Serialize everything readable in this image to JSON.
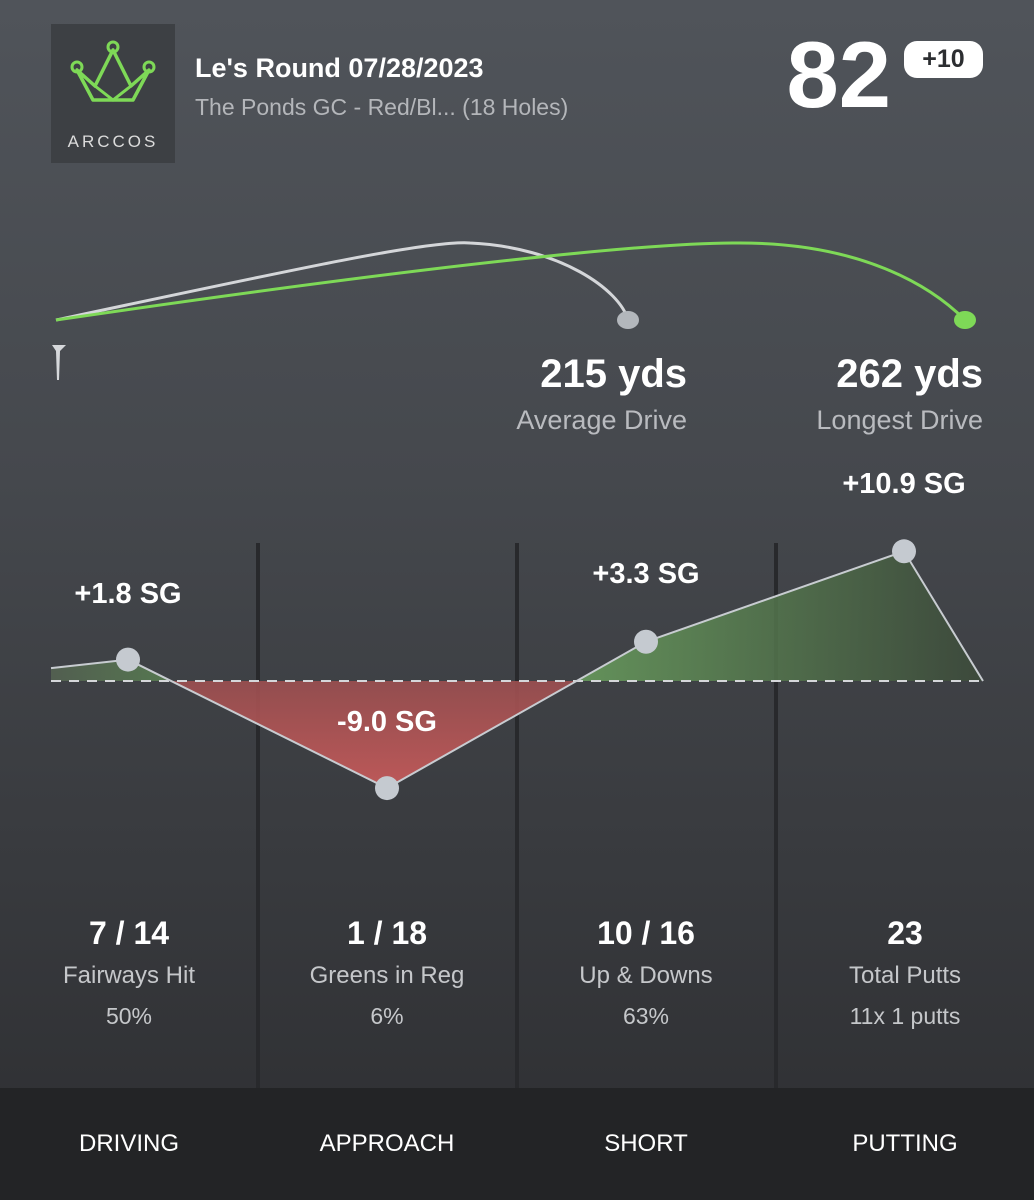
{
  "logo": {
    "text": "ARCCOS",
    "accent": "#7ed957"
  },
  "header": {
    "round_title": "Le's Round 07/28/2023",
    "course": "The Ponds GC - Red/Bl... (18 Holes)",
    "score": "82",
    "over_par": "+10"
  },
  "drives": {
    "average": {
      "value": "215 yds",
      "label": "Average Drive",
      "yards": 215
    },
    "longest": {
      "value": "262 yds",
      "label": "Longest Drive",
      "yards": 262
    }
  },
  "chart_data": {
    "type": "area",
    "categories": [
      "DRIVING",
      "APPROACH",
      "SHORT",
      "PUTTING"
    ],
    "values": [
      1.8,
      -9.0,
      3.3,
      10.9
    ],
    "labels": [
      "+1.8 SG",
      "-9.0 SG",
      "+3.3 SG",
      "+10.9 SG"
    ],
    "baseline": 0,
    "colors": {
      "positive": "#6a9a5c",
      "negative": "#b85757",
      "point": "#c5cad0"
    }
  },
  "stats": [
    {
      "main": "7 / 14",
      "label": "Fairways Hit",
      "sub": "50%"
    },
    {
      "main": "1 / 18",
      "label": "Greens in Reg",
      "sub": "6%"
    },
    {
      "main": "10 / 16",
      "label": "Up & Downs",
      "sub": "63%"
    },
    {
      "main": "23",
      "label": "Total Putts",
      "sub": "11x 1 putts"
    }
  ],
  "tabs": [
    "DRIVING",
    "APPROACH",
    "SHORT",
    "PUTTING"
  ]
}
